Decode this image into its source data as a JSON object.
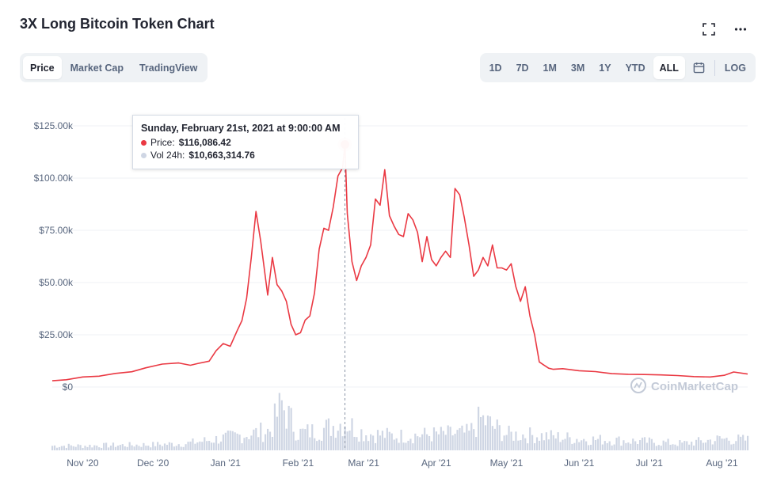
{
  "page": {
    "title": "3X Long Bitcoin Token Chart"
  },
  "header_icons": {
    "fullscreen": "fullscreen-icon",
    "more": "more-dots-icon"
  },
  "tabs_left": [
    {
      "label": "Price",
      "active": true
    },
    {
      "label": "Market Cap",
      "active": false
    },
    {
      "label": "TradingView",
      "active": false
    }
  ],
  "ranges": [
    {
      "label": "1D",
      "active": false
    },
    {
      "label": "7D",
      "active": false
    },
    {
      "label": "1M",
      "active": false
    },
    {
      "label": "3M",
      "active": false
    },
    {
      "label": "1Y",
      "active": false
    },
    {
      "label": "YTD",
      "active": false
    },
    {
      "label": "ALL",
      "active": true
    }
  ],
  "calendar_icon": "calendar-icon",
  "log_label": "LOG",
  "tooltip": {
    "date": "Sunday, February 21st, 2021 at 9:00:00 AM",
    "price_label": "Price:",
    "price_value": "$116,086.42",
    "vol_label": "Vol 24h:",
    "vol_value": "$10,663,314.76"
  },
  "watermark": "CoinMarketCap",
  "colors": {
    "price_line": "#ea3943",
    "volume": "#cfd6e4",
    "grid": "#eff2f5",
    "text_muted": "#58667e"
  },
  "chart_data": {
    "type": "line",
    "ylim": [
      0,
      125000
    ],
    "yticks": [
      {
        "value": 0,
        "label": "$0"
      },
      {
        "value": 25000,
        "label": "$25.00k"
      },
      {
        "value": 50000,
        "label": "$50.00k"
      },
      {
        "value": 75000,
        "label": "$75.00k"
      },
      {
        "value": 100000,
        "label": "$100.00k"
      },
      {
        "value": 125000,
        "label": "$125.00k"
      }
    ],
    "xlim": [
      "2020-10-19",
      "2021-08-12"
    ],
    "xticks": [
      {
        "date": "2020-11-01",
        "label": "Nov '20"
      },
      {
        "date": "2020-12-01",
        "label": "Dec '20"
      },
      {
        "date": "2021-01-01",
        "label": "Jan '21"
      },
      {
        "date": "2021-02-01",
        "label": "Feb '21"
      },
      {
        "date": "2021-03-01",
        "label": "Mar '21"
      },
      {
        "date": "2021-04-01",
        "label": "Apr '21"
      },
      {
        "date": "2021-05-01",
        "label": "May '21"
      },
      {
        "date": "2021-06-01",
        "label": "Jun '21"
      },
      {
        "date": "2021-07-01",
        "label": "Jul '21"
      },
      {
        "date": "2021-08-01",
        "label": "Aug '21"
      }
    ],
    "highlight": {
      "date": "2021-02-21",
      "price": 116086.42
    },
    "series": [
      {
        "type": "line",
        "x": [
          "2020-10-19",
          "2020-10-25",
          "2020-11-01",
          "2020-11-08",
          "2020-11-15",
          "2020-11-22",
          "2020-11-28",
          "2020-12-05",
          "2020-12-12",
          "2020-12-17",
          "2020-12-20",
          "2020-12-25",
          "2020-12-28",
          "2020-12-31",
          "2021-01-03",
          "2021-01-06",
          "2021-01-08",
          "2021-01-10",
          "2021-01-12",
          "2021-01-14",
          "2021-01-16",
          "2021-01-19",
          "2021-01-21",
          "2021-01-23",
          "2021-01-25",
          "2021-01-27",
          "2021-01-29",
          "2021-01-31",
          "2021-02-02",
          "2021-02-04",
          "2021-02-06",
          "2021-02-08",
          "2021-02-10",
          "2021-02-12",
          "2021-02-14",
          "2021-02-16",
          "2021-02-18",
          "2021-02-20",
          "2021-02-21",
          "2021-02-22",
          "2021-02-24",
          "2021-02-26",
          "2021-02-28",
          "2021-03-02",
          "2021-03-04",
          "2021-03-06",
          "2021-03-08",
          "2021-03-10",
          "2021-03-12",
          "2021-03-14",
          "2021-03-16",
          "2021-03-18",
          "2021-03-20",
          "2021-03-22",
          "2021-03-24",
          "2021-03-26",
          "2021-03-28",
          "2021-03-30",
          "2021-04-01",
          "2021-04-03",
          "2021-04-05",
          "2021-04-07",
          "2021-04-09",
          "2021-04-11",
          "2021-04-13",
          "2021-04-15",
          "2021-04-17",
          "2021-04-19",
          "2021-04-21",
          "2021-04-23",
          "2021-04-25",
          "2021-04-27",
          "2021-04-29",
          "2021-05-01",
          "2021-05-03",
          "2021-05-05",
          "2021-05-07",
          "2021-05-09",
          "2021-05-11",
          "2021-05-13",
          "2021-05-15",
          "2021-05-17",
          "2021-05-19",
          "2021-05-21",
          "2021-05-25",
          "2021-06-01",
          "2021-06-08",
          "2021-06-15",
          "2021-06-22",
          "2021-06-29",
          "2021-07-06",
          "2021-07-13",
          "2021-07-20",
          "2021-07-27",
          "2021-08-02",
          "2021-08-06",
          "2021-08-12"
        ],
        "y": [
          3000,
          3500,
          4800,
          5200,
          6500,
          7300,
          9200,
          11000,
          11500,
          10400,
          11200,
          12400,
          17400,
          20800,
          19500,
          27000,
          31800,
          42500,
          62000,
          84000,
          70000,
          44000,
          62000,
          49000,
          46000,
          41000,
          30000,
          25000,
          26000,
          32000,
          34000,
          45000,
          66000,
          76000,
          75000,
          86000,
          101000,
          105000,
          116086,
          83000,
          60000,
          51000,
          58000,
          62000,
          68000,
          90000,
          87000,
          104000,
          82000,
          77000,
          73000,
          72000,
          83000,
          80000,
          74000,
          60000,
          72000,
          61000,
          58000,
          62000,
          65000,
          62000,
          95000,
          92000,
          81000,
          68000,
          53000,
          56000,
          62000,
          58000,
          68000,
          57000,
          57000,
          56000,
          59000,
          48000,
          41000,
          48000,
          34000,
          25000,
          12000,
          10500,
          9000,
          8500,
          8800,
          7800,
          7400,
          6400,
          6100,
          6000,
          5800,
          5500,
          5000,
          4800,
          5600,
          7200,
          6200
        ]
      },
      {
        "name": "Vol 24h",
        "type": "bar",
        "note": "relative volume profile",
        "x": [
          "2020-10-19",
          "2020-11-01",
          "2020-11-15",
          "2020-12-01",
          "2020-12-15",
          "2021-01-01",
          "2021-01-10",
          "2021-01-20",
          "2021-01-25",
          "2021-02-01",
          "2021-02-10",
          "2021-02-21",
          "2021-03-01",
          "2021-03-15",
          "2021-04-01",
          "2021-04-15",
          "2021-04-20",
          "2021-05-01",
          "2021-05-15",
          "2021-06-01",
          "2021-06-15",
          "2021-07-01",
          "2021-07-15",
          "2021-08-01",
          "2021-08-12"
        ],
        "y": [
          0.08,
          0.08,
          0.09,
          0.1,
          0.12,
          0.22,
          0.28,
          0.35,
          0.8,
          0.3,
          0.35,
          0.5,
          0.3,
          0.25,
          0.28,
          0.3,
          0.55,
          0.28,
          0.26,
          0.2,
          0.18,
          0.15,
          0.12,
          0.2,
          0.18
        ]
      }
    ]
  }
}
